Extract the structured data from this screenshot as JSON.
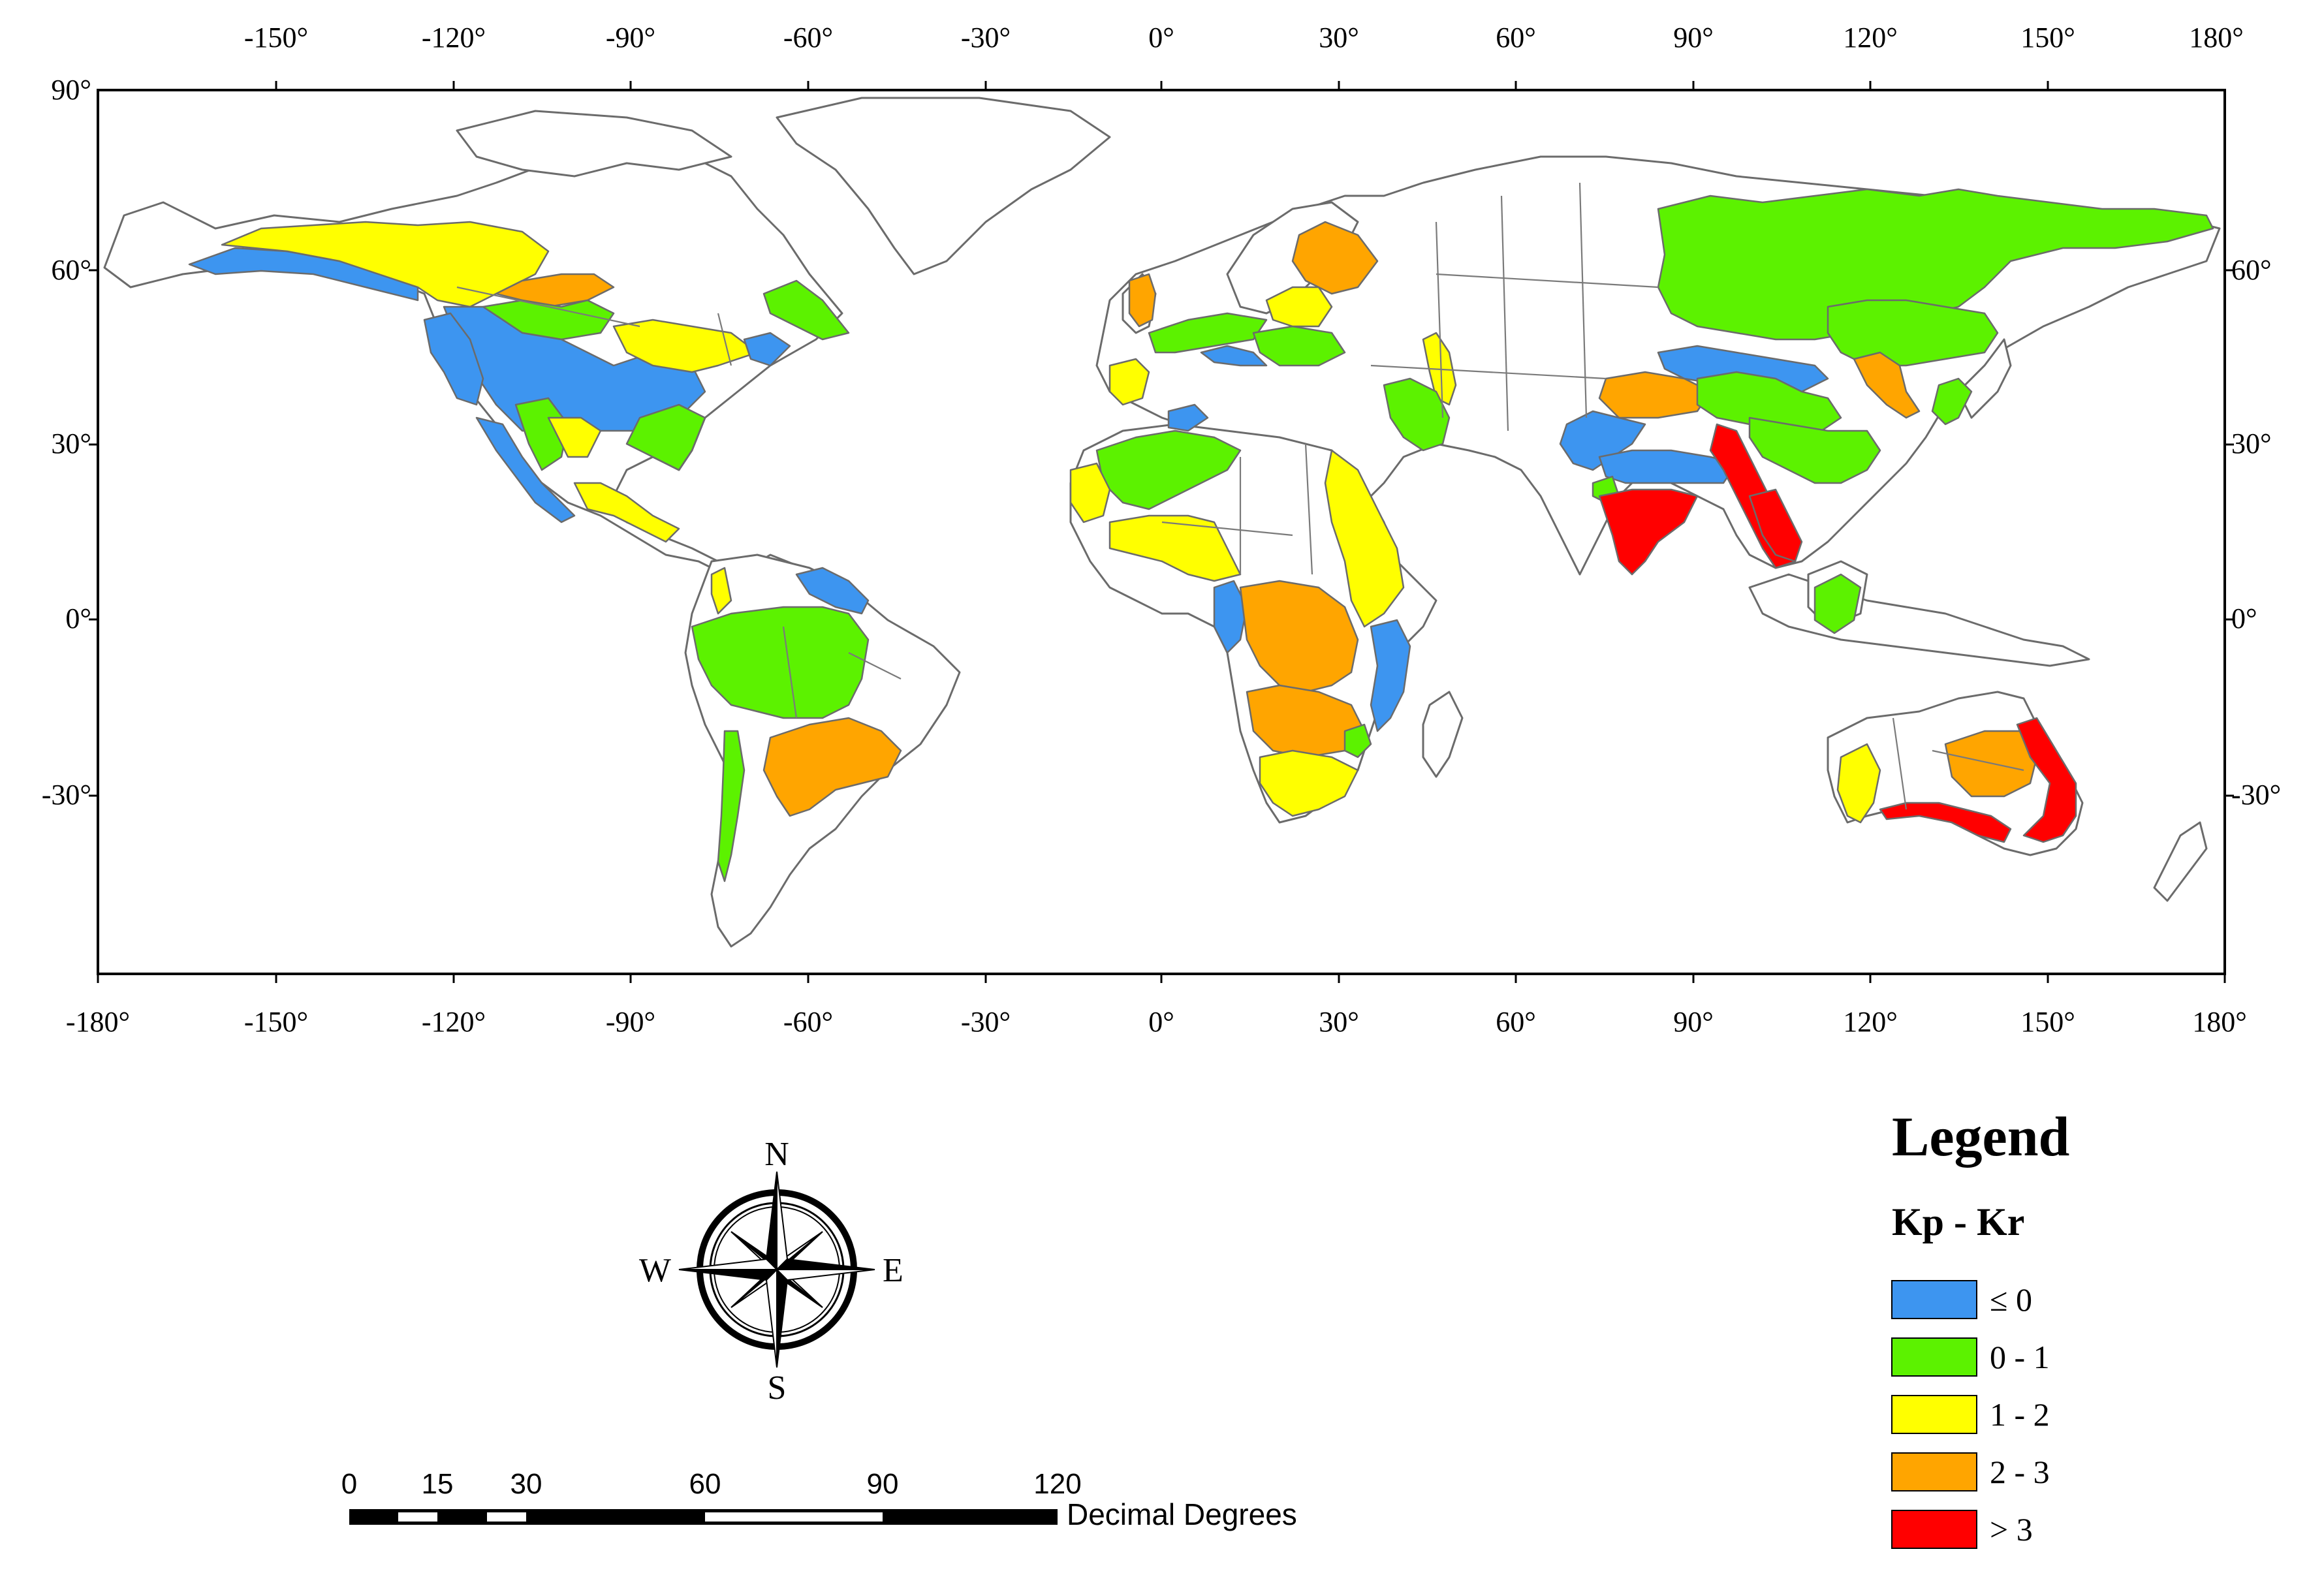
{
  "map": {
    "top_ticks": [
      "-150°",
      "-120°",
      "-90°",
      "-60°",
      "-30°",
      "0°",
      "30°",
      "60°",
      "90°",
      "120°",
      "150°",
      "180°"
    ],
    "bottom_ticks": [
      "-180°",
      "-150°",
      "-120°",
      "-90°",
      "-60°",
      "-30°",
      "0°",
      "30°",
      "60°",
      "90°",
      "120°",
      "150°",
      "180°"
    ],
    "left_ticks": [
      "90°",
      "60°",
      "30°",
      "0°",
      "-30°"
    ],
    "right_ticks": [
      "60°",
      "30°",
      "0°",
      "-30°"
    ]
  },
  "legend": {
    "title": "Legend",
    "subtitle": "Kp - Kr",
    "items": [
      {
        "label": "≤ 0",
        "color": "#3d95f0"
      },
      {
        "label": "0 - 1",
        "color": "#5cf200"
      },
      {
        "label": "1 - 2",
        "color": "#ffff00"
      },
      {
        "label": "2 - 3",
        "color": "#ffa500"
      },
      {
        "label": "> 3",
        "color": "#ff0000"
      }
    ]
  },
  "compass": {
    "n": "N",
    "s": "S",
    "e": "E",
    "w": "W"
  },
  "scale_bar": {
    "labels": [
      "0",
      "15",
      "30",
      "60",
      "90",
      "120"
    ],
    "unit": "Decimal Degrees"
  }
}
